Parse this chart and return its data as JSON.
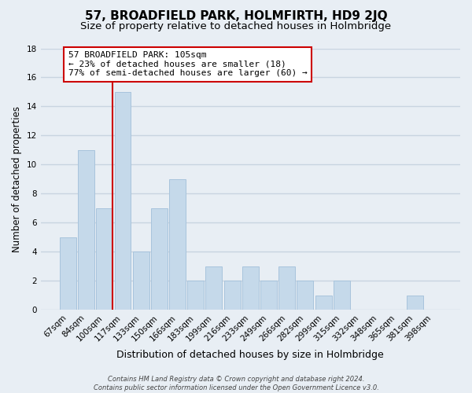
{
  "title": "57, BROADFIELD PARK, HOLMFIRTH, HD9 2JQ",
  "subtitle": "Size of property relative to detached houses in Holmbridge",
  "xlabel": "Distribution of detached houses by size in Holmbridge",
  "ylabel": "Number of detached properties",
  "footer_lines": [
    "Contains HM Land Registry data © Crown copyright and database right 2024.",
    "Contains public sector information licensed under the Open Government Licence v3.0."
  ],
  "categories": [
    "67sqm",
    "84sqm",
    "100sqm",
    "117sqm",
    "133sqm",
    "150sqm",
    "166sqm",
    "183sqm",
    "199sqm",
    "216sqm",
    "233sqm",
    "249sqm",
    "266sqm",
    "282sqm",
    "299sqm",
    "315sqm",
    "332sqm",
    "348sqm",
    "365sqm",
    "381sqm",
    "398sqm"
  ],
  "values": [
    5,
    11,
    7,
    15,
    4,
    7,
    9,
    2,
    3,
    2,
    3,
    2,
    3,
    2,
    1,
    2,
    0,
    0,
    0,
    1,
    0
  ],
  "bar_color": "#c5d9ea",
  "bar_edge_color": "#a8c4dc",
  "vline_color": "#cc0000",
  "vline_x_index": 2,
  "annotation_line0": "57 BROADFIELD PARK: 105sqm",
  "annotation_line1": "← 23% of detached houses are smaller (18)",
  "annotation_line2": "77% of semi-detached houses are larger (60) →",
  "annotation_box_edge": "#cc0000",
  "annotation_box_bg": "#ffffff",
  "ylim": [
    0,
    18
  ],
  "yticks": [
    0,
    2,
    4,
    6,
    8,
    10,
    12,
    14,
    16,
    18
  ],
  "bg_color": "#e8eef4",
  "plot_bg_color": "#e8eef4",
  "grid_color": "#c8d4e0",
  "title_fontsize": 11,
  "subtitle_fontsize": 9.5,
  "xlabel_fontsize": 9,
  "ylabel_fontsize": 8.5,
  "tick_fontsize": 7.5,
  "annotation_fontsize": 8,
  "footer_fontsize": 6
}
